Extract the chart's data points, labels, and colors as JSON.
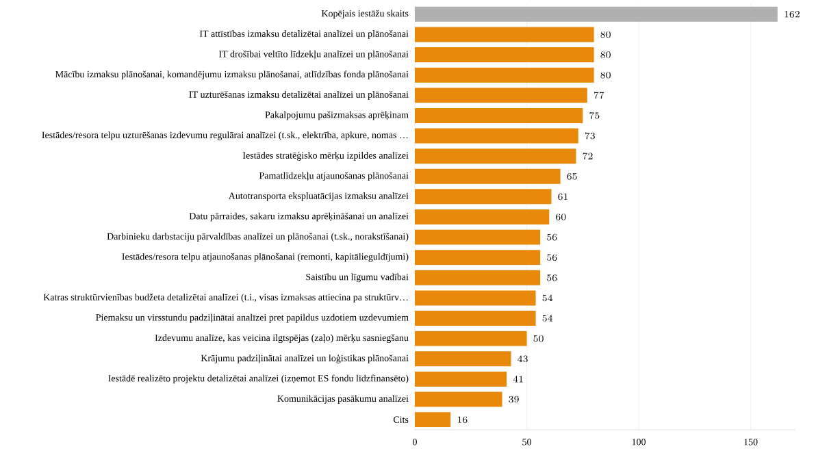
{
  "chart_data": {
    "type": "bar",
    "orientation": "horizontal",
    "categories": [
      "Kopējais iestāžu skaits",
      "IT attīstības izmaksu detalizētai analīzei un plānošanai",
      "IT drošībai veltīto līdzekļu analīzei un plānošanai",
      "Mācību izmaksu plānošanai, komandējumu izmaksu plānošanai, atlīdzības fonda plānošanai",
      "IT uzturēšanas izmaksu detalizētai analīzei un plānošanai",
      "Pakalpojumu pašizmaksas aprēķinam",
      "Iestādes/resora telpu uzturēšanas izdevumu regulārai analīzei (t.sk., elektrība, apkure, nomas …",
      "Iestādes stratēģisko mērķu izpildes analīzei",
      "Pamatlīdzekļu atjaunošanas plānošanai",
      "Autotransporta ekspluatācijas izmaksu analīzei",
      "Datu pārraides, sakaru izmaksu aprēķināšanai un analīzei",
      "Darbinieku darbstaciju pārvaldības analīzei un plānošanai (t.sk., norakstīšanai)",
      "Iestādes/resora telpu atjaunošanas plānošanai (remonti, kapitālieguldījumi)",
      "Saistību un līgumu vadībai",
      "Katras struktūrvienības budžeta detalizētai analīzei (t.i., visas izmaksas attiecina pa struktūrv…",
      "Piemaksu un virsstundu padziļinātai analīzei pret papildus uzdotiem uzdevumiem",
      "Izdevumu analīze, kas veicina ilgtspējas (zaļo) mērķu sasniegšanu",
      "Krājumu padziļinātai analīzei un loģistikas plānošanai",
      "Iestādē realizēto projektu detalizētai analīzei (izņemot ES fondu līdzfinansēto)",
      "Komunikācijas pasākumu analīzei",
      "Cits"
    ],
    "values": [
      162,
      80,
      80,
      80,
      77,
      75,
      73,
      72,
      65,
      61,
      60,
      56,
      56,
      56,
      54,
      54,
      50,
      43,
      41,
      39,
      16
    ],
    "colors": [
      "#b0b0b0",
      "#e8890c",
      "#e8890c",
      "#e8890c",
      "#e8890c",
      "#e8890c",
      "#e8890c",
      "#e8890c",
      "#e8890c",
      "#e8890c",
      "#e8890c",
      "#e8890c",
      "#e8890c",
      "#e8890c",
      "#e8890c",
      "#e8890c",
      "#e8890c",
      "#e8890c",
      "#e8890c",
      "#e8890c",
      "#e8890c"
    ],
    "xlim": [
      0,
      170
    ],
    "xticks": [
      0,
      50,
      100,
      150
    ],
    "grid": "x",
    "data_labels": true
  }
}
